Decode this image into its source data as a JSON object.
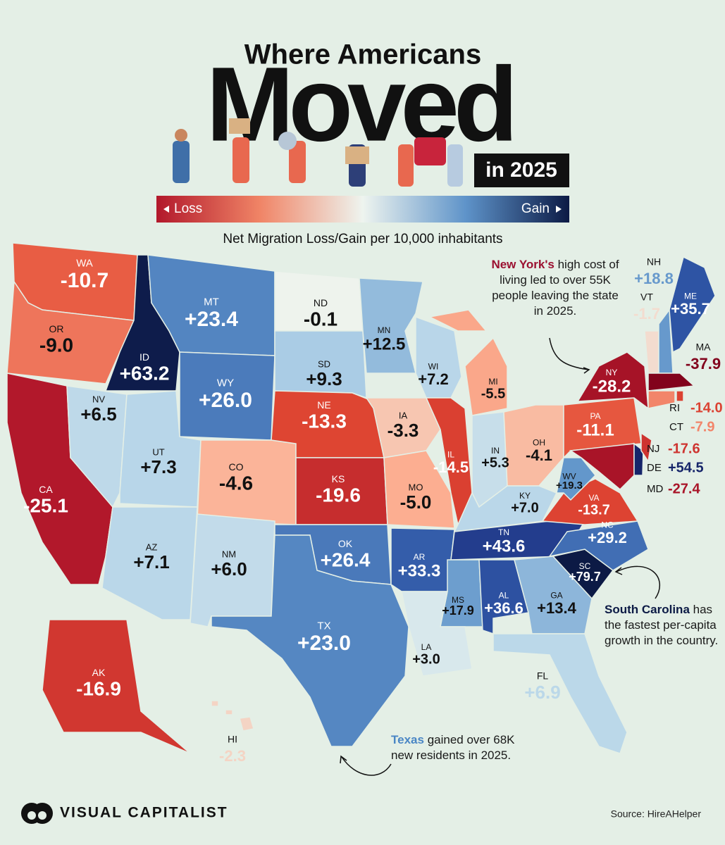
{
  "header": {
    "title_top": "Where Americans",
    "title_main": "Moved",
    "title_year": "in 2025"
  },
  "legend": {
    "loss": "Loss",
    "gain": "Gain",
    "colors": [
      "#b2182b",
      "#f08466",
      "#eef4ef",
      "#5e93c9",
      "#0c1a45"
    ]
  },
  "subtitle": "Net Migration Loss/Gain per 10,000 inhabitants",
  "states": [
    {
      "abbr": "WA",
      "value": -10.7,
      "label": "-10.7"
    },
    {
      "abbr": "OR",
      "value": -9.0,
      "label": "-9.0"
    },
    {
      "abbr": "CA",
      "value": -25.1,
      "label": "-25.1"
    },
    {
      "abbr": "ID",
      "value": 63.2,
      "label": "+63.2"
    },
    {
      "abbr": "NV",
      "value": 6.5,
      "label": "+6.5"
    },
    {
      "abbr": "MT",
      "value": 23.4,
      "label": "+23.4"
    },
    {
      "abbr": "WY",
      "value": 26.0,
      "label": "+26.0"
    },
    {
      "abbr": "UT",
      "value": 7.3,
      "label": "+7.3"
    },
    {
      "abbr": "CO",
      "value": -4.6,
      "label": "-4.6"
    },
    {
      "abbr": "AZ",
      "value": 7.1,
      "label": "+7.1"
    },
    {
      "abbr": "NM",
      "value": 6.0,
      "label": "+6.0"
    },
    {
      "abbr": "ND",
      "value": -0.1,
      "label": "-0.1"
    },
    {
      "abbr": "SD",
      "value": 9.3,
      "label": "+9.3"
    },
    {
      "abbr": "NE",
      "value": -13.3,
      "label": "-13.3"
    },
    {
      "abbr": "KS",
      "value": -19.6,
      "label": "-19.6"
    },
    {
      "abbr": "OK",
      "value": 26.4,
      "label": "+26.4"
    },
    {
      "abbr": "TX",
      "value": 23.0,
      "label": "+23.0"
    },
    {
      "abbr": "MN",
      "value": 12.5,
      "label": "+12.5"
    },
    {
      "abbr": "IA",
      "value": -3.3,
      "label": "-3.3"
    },
    {
      "abbr": "MO",
      "value": -5.0,
      "label": "-5.0"
    },
    {
      "abbr": "AR",
      "value": 33.3,
      "label": "+33.3"
    },
    {
      "abbr": "WI",
      "value": 7.2,
      "label": "+7.2"
    },
    {
      "abbr": "IL",
      "value": -14.5,
      "label": "-14.5"
    },
    {
      "abbr": "MI",
      "value": -5.5,
      "label": "-5.5"
    },
    {
      "abbr": "IN",
      "value": 5.3,
      "label": "+5.3"
    },
    {
      "abbr": "OH",
      "value": -4.1,
      "label": "-4.1"
    },
    {
      "abbr": "KY",
      "value": 7.0,
      "label": "+7.0"
    },
    {
      "abbr": "TN",
      "value": 43.6,
      "label": "+43.6"
    },
    {
      "abbr": "MS",
      "value": 17.9,
      "label": "+17.9"
    },
    {
      "abbr": "AL",
      "value": 36.6,
      "label": "+36.6"
    },
    {
      "abbr": "LA",
      "value": 3.0,
      "label": "+3.0"
    },
    {
      "abbr": "GA",
      "value": 13.4,
      "label": "+13.4"
    },
    {
      "abbr": "FL",
      "value": 6.9,
      "label": "+6.9"
    },
    {
      "abbr": "SC",
      "value": 79.7,
      "label": "+79.7"
    },
    {
      "abbr": "NC",
      "value": 29.2,
      "label": "+29.2"
    },
    {
      "abbr": "VA",
      "value": -13.7,
      "label": "-13.7"
    },
    {
      "abbr": "WV",
      "value": 19.3,
      "label": "+19.3"
    },
    {
      "abbr": "PA",
      "value": -11.1,
      "label": "-11.1"
    },
    {
      "abbr": "NY",
      "value": -28.2,
      "label": "-28.2"
    },
    {
      "abbr": "MD",
      "value": -27.4,
      "label": "-27.4"
    },
    {
      "abbr": "DE",
      "value": 54.5,
      "label": "+54.5"
    },
    {
      "abbr": "NJ",
      "value": -17.6,
      "label": "-17.6"
    },
    {
      "abbr": "VT",
      "value": -1.7,
      "label": "-1.7"
    },
    {
      "abbr": "NH",
      "value": 18.8,
      "label": "+18.8"
    },
    {
      "abbr": "ME",
      "value": 35.7,
      "label": "+35.7"
    },
    {
      "abbr": "MA",
      "value": -37.9,
      "label": "-37.9"
    },
    {
      "abbr": "RI",
      "value": -14.0,
      "label": "-14.0"
    },
    {
      "abbr": "CT",
      "value": -7.9,
      "label": "-7.9"
    },
    {
      "abbr": "AK",
      "value": -16.9,
      "label": "-16.9"
    },
    {
      "abbr": "HI",
      "value": -2.3,
      "label": "-2.3"
    }
  ],
  "annotations": [
    {
      "highlight": "New York's",
      "text": "high cost of living led to over 55K people leaving the state in 2025.",
      "color": "#9b1030"
    },
    {
      "highlight": "South Carolina",
      "text": "has the fastest per-capita growth in the country.",
      "color": "#0c1a45"
    },
    {
      "highlight": "Texas",
      "text": "gained over 68K new residents in 2025.",
      "color": "#4a86c5"
    }
  ],
  "footer": {
    "brand": "VISUAL CAPITALIST",
    "source": "Source: HireAHelper"
  }
}
